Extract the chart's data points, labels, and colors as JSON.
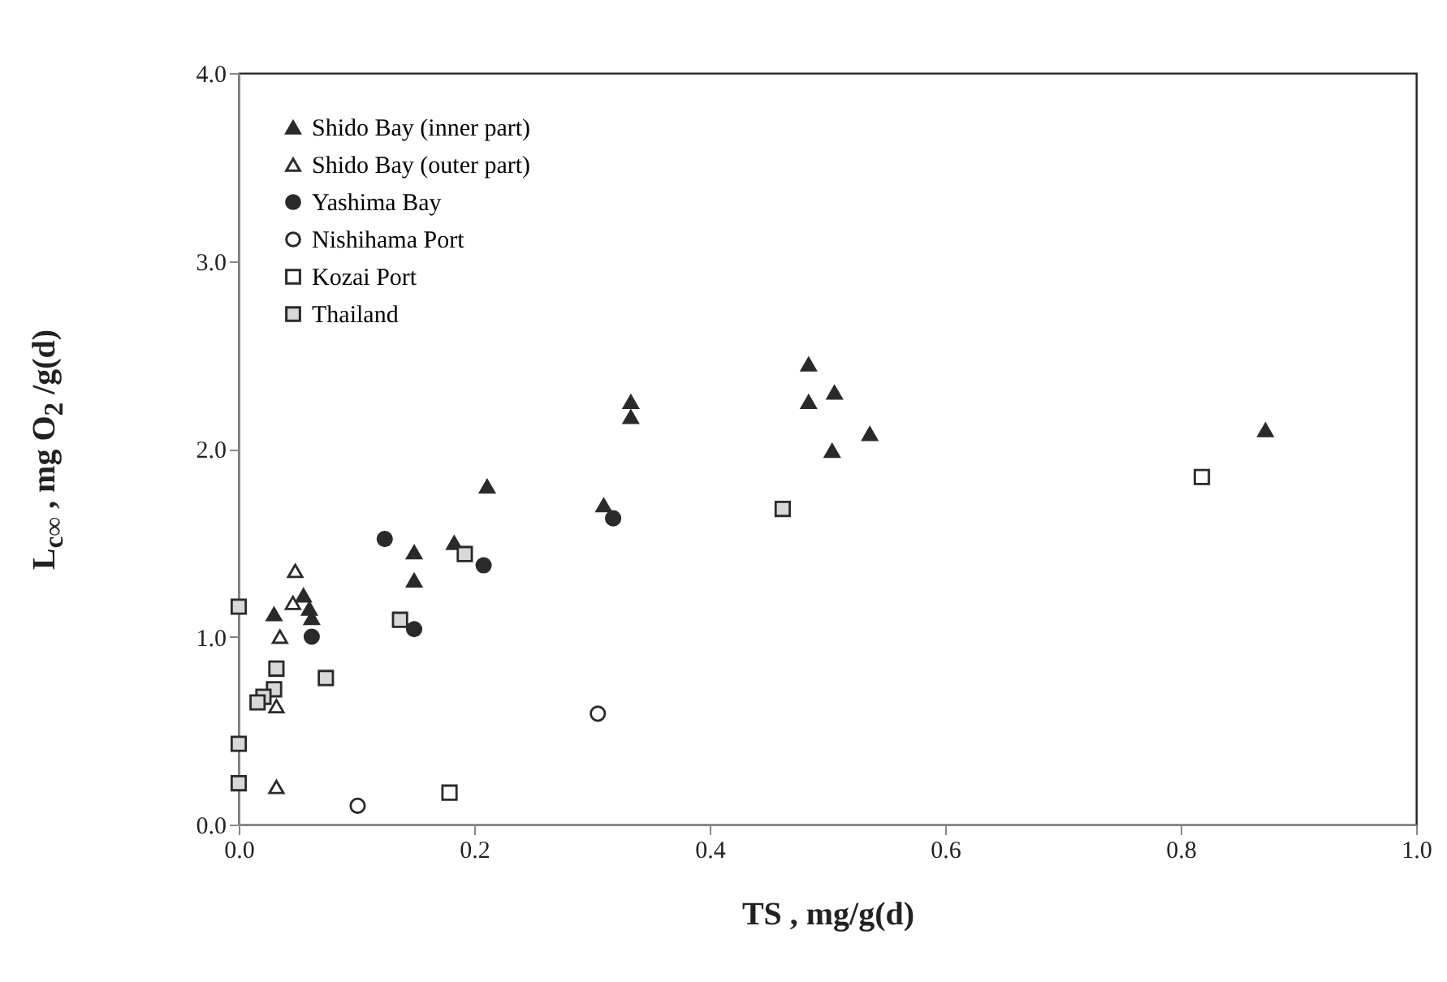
{
  "chart_data": {
    "type": "scatter",
    "xlabel": "TS    ,    mg/g(d)",
    "ylabel": "L$_{c∞}$  ,     mg O$_{2}$ /g(d)",
    "xlim": [
      0,
      1
    ],
    "ylim": [
      0,
      4
    ],
    "xticks": [
      {
        "value": 0,
        "label": "0.0"
      },
      {
        "value": 0.2,
        "label": "0.2"
      },
      {
        "value": 0.4,
        "label": "0.4"
      },
      {
        "value": 0.6,
        "label": "0.6"
      },
      {
        "value": 0.8,
        "label": "0.8"
      },
      {
        "value": 1,
        "label": "1.0"
      }
    ],
    "yticks": [
      {
        "value": 0,
        "label": "0.0"
      },
      {
        "value": 1,
        "label": "1.0"
      },
      {
        "value": 2,
        "label": "2.0"
      },
      {
        "value": 3,
        "label": "3.0"
      },
      {
        "value": 4,
        "label": "4.0"
      }
    ],
    "legend": "top left",
    "grid": false,
    "series": [
      {
        "name": "Shido Bay (inner part)",
        "color": "#2a2a2a",
        "marker": "triangle",
        "x": [
          0.03,
          0.055,
          0.06,
          0.062,
          0.149,
          0.149,
          0.183,
          0.211,
          0.31,
          0.333,
          0.333,
          0.484,
          0.484,
          0.506,
          0.504,
          0.536,
          0.872
        ],
        "values": [
          1.12,
          1.22,
          1.15,
          1.1,
          1.45,
          1.3,
          1.5,
          1.8,
          1.7,
          2.25,
          2.17,
          2.45,
          2.25,
          2.3,
          1.99,
          2.08,
          2.1
        ]
      },
      {
        "name": "Shido Bay (outer part)",
        "color": "#ffffff",
        "marker": "triangle",
        "x": [
          0.048,
          0.046,
          0.035,
          0.032,
          0.032
        ],
        "values": [
          1.35,
          1.18,
          1.0,
          0.63,
          0.2
        ]
      },
      {
        "name": "Yashima Bay",
        "color": "#2a2a2a",
        "marker": "circle",
        "x": [
          0.124,
          0.208,
          0.149,
          0.062,
          0.318
        ],
        "values": [
          1.52,
          1.38,
          1.04,
          1.0,
          1.63
        ]
      },
      {
        "name": "Nishihama Port",
        "color": "#ffffff",
        "marker": "circle",
        "x": [
          0.101,
          0.305
        ],
        "values": [
          0.1,
          0.59
        ]
      },
      {
        "name": "Kozai Port",
        "color": "#ffffff",
        "marker": "square",
        "x": [
          0.179,
          0.818
        ],
        "values": [
          0.17,
          1.85
        ]
      },
      {
        "name": "Thailand",
        "color": "#d8d8d8",
        "marker": "square",
        "x": [
          0,
          0,
          0,
          0.032,
          0.03,
          0.021,
          0.016,
          0.074,
          0.137,
          0.192,
          0.462
        ],
        "values": [
          1.16,
          0.43,
          0.22,
          0.83,
          0.72,
          0.68,
          0.65,
          0.78,
          1.09,
          1.44,
          1.68
        ]
      }
    ]
  }
}
